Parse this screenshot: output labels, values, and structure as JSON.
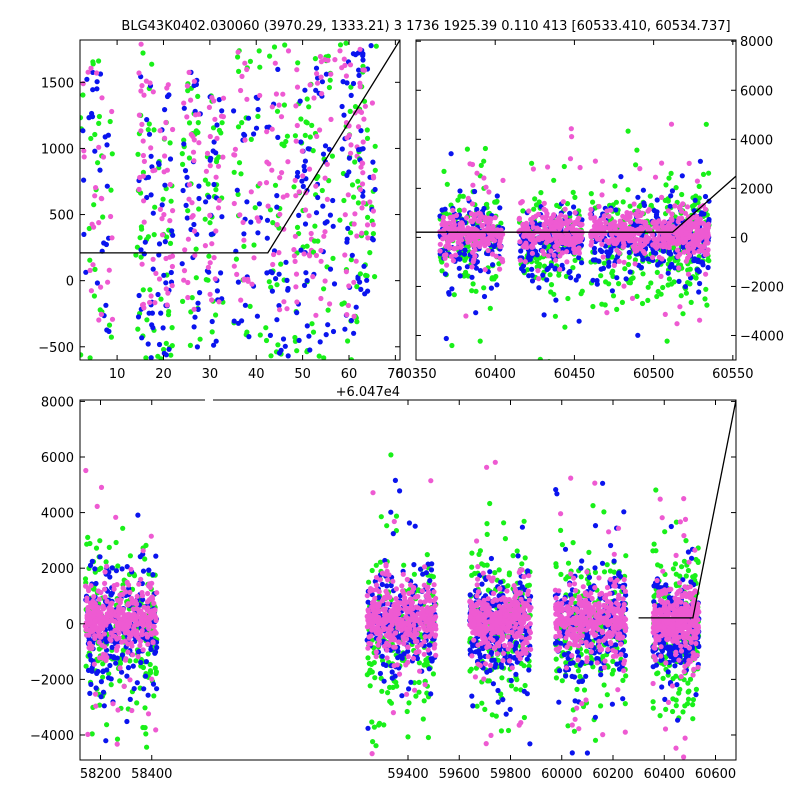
{
  "figure": {
    "title": "BLG43K0402.030060 (3970.29, 1333.21)    3 1736 1925.39 0.110 413 [60533.410, 60534.737]"
  },
  "colors": {
    "blue": "#0a14ee",
    "green": "#19f019",
    "pink": "#ee5ad2",
    "line": "#000000"
  },
  "chart_data": [
    {
      "type": "scatter",
      "name": "top-left",
      "xlim": [
        2,
        71
      ],
      "ylim": [
        -600,
        1820
      ],
      "x_offset_label": "+6.047e4",
      "xticks": [
        10,
        20,
        30,
        40,
        50,
        60,
        70
      ],
      "xtick_labels": [
        "10",
        "20",
        "30",
        "40",
        "50",
        "60",
        "70"
      ],
      "yticks": [
        -500,
        0,
        500,
        1000,
        1500
      ],
      "ytick_labels": [
        "−500",
        "0",
        "500",
        "1000",
        "1500"
      ],
      "yaxis_side": "left",
      "model_line": [
        [
          2,
          210
        ],
        [
          42.5,
          210
        ],
        [
          71,
          1820
        ]
      ],
      "clusters": [
        {
          "xmin": 2,
          "xmax": 9,
          "ymin": -600,
          "ymax": 1750
        },
        {
          "xmin": 14,
          "xmax": 18,
          "ymin": -600,
          "ymax": 1800
        },
        {
          "xmin": 18,
          "xmax": 22,
          "ymin": -600,
          "ymax": 1500
        },
        {
          "xmin": 24,
          "xmax": 28,
          "ymin": -550,
          "ymax": 1600
        },
        {
          "xmin": 29,
          "xmax": 33,
          "ymin": -500,
          "ymax": 1400
        },
        {
          "xmin": 35,
          "xmax": 41,
          "ymin": -450,
          "ymax": 1800
        },
        {
          "xmin": 42,
          "xmax": 47,
          "ymin": -600,
          "ymax": 1800
        },
        {
          "xmin": 48,
          "xmax": 52,
          "ymin": -550,
          "ymax": 1650
        },
        {
          "xmin": 52,
          "xmax": 57,
          "ymin": -600,
          "ymax": 1700
        },
        {
          "xmin": 58,
          "xmax": 62,
          "ymin": -600,
          "ymax": 1800
        },
        {
          "xmin": 62,
          "xmax": 66,
          "ymin": -100,
          "ymax": 1800
        }
      ]
    },
    {
      "type": "scatter",
      "name": "top-right",
      "xlim": [
        60350,
        60552
      ],
      "ylim": [
        -5000,
        8050
      ],
      "xticks": [
        60350,
        60400,
        60450,
        60500,
        60550
      ],
      "xtick_labels": [
        "60350",
        "60400",
        "60450",
        "60500",
        "60550"
      ],
      "yticks": [
        -4000,
        -2000,
        0,
        2000,
        4000,
        6000,
        8000
      ],
      "ytick_labels": [
        "−4000",
        "−2000",
        "0",
        "2000",
        "4000",
        "6000",
        "8000"
      ],
      "yaxis_side": "right",
      "model_line": [
        [
          60350,
          210
        ],
        [
          60512,
          210
        ],
        [
          60552,
          2500
        ]
      ],
      "segments": [
        [
          60365,
          60405
        ],
        [
          60415,
          60455
        ],
        [
          60460,
          60505
        ],
        [
          60505,
          60535
        ]
      ]
    },
    {
      "type": "scatter",
      "name": "bottom",
      "xlim": [
        58120,
        60680
      ],
      "ylim": [
        -4900,
        8050
      ],
      "xticks": [
        58200,
        58400,
        59400,
        59600,
        59800,
        60000,
        60200,
        60400,
        60600
      ],
      "xtick_labels": [
        "58200",
        "58400",
        "59400",
        "59600",
        "59800",
        "60000",
        "60200",
        "60400",
        "60600"
      ],
      "yticks": [
        -4000,
        -2000,
        0,
        2000,
        4000,
        6000,
        8000
      ],
      "ytick_labels": [
        "−4000",
        "−2000",
        "0",
        "2000",
        "4000",
        "6000",
        "8000"
      ],
      "yaxis_side": "left",
      "model_line": [
        [
          60300,
          210
        ],
        [
          60512,
          210
        ],
        [
          60680,
          8050
        ]
      ],
      "seasons": [
        [
          58140,
          58420
        ],
        [
          59240,
          59510
        ],
        [
          59640,
          59880
        ],
        [
          59975,
          60250
        ],
        [
          60355,
          60535
        ]
      ]
    }
  ]
}
